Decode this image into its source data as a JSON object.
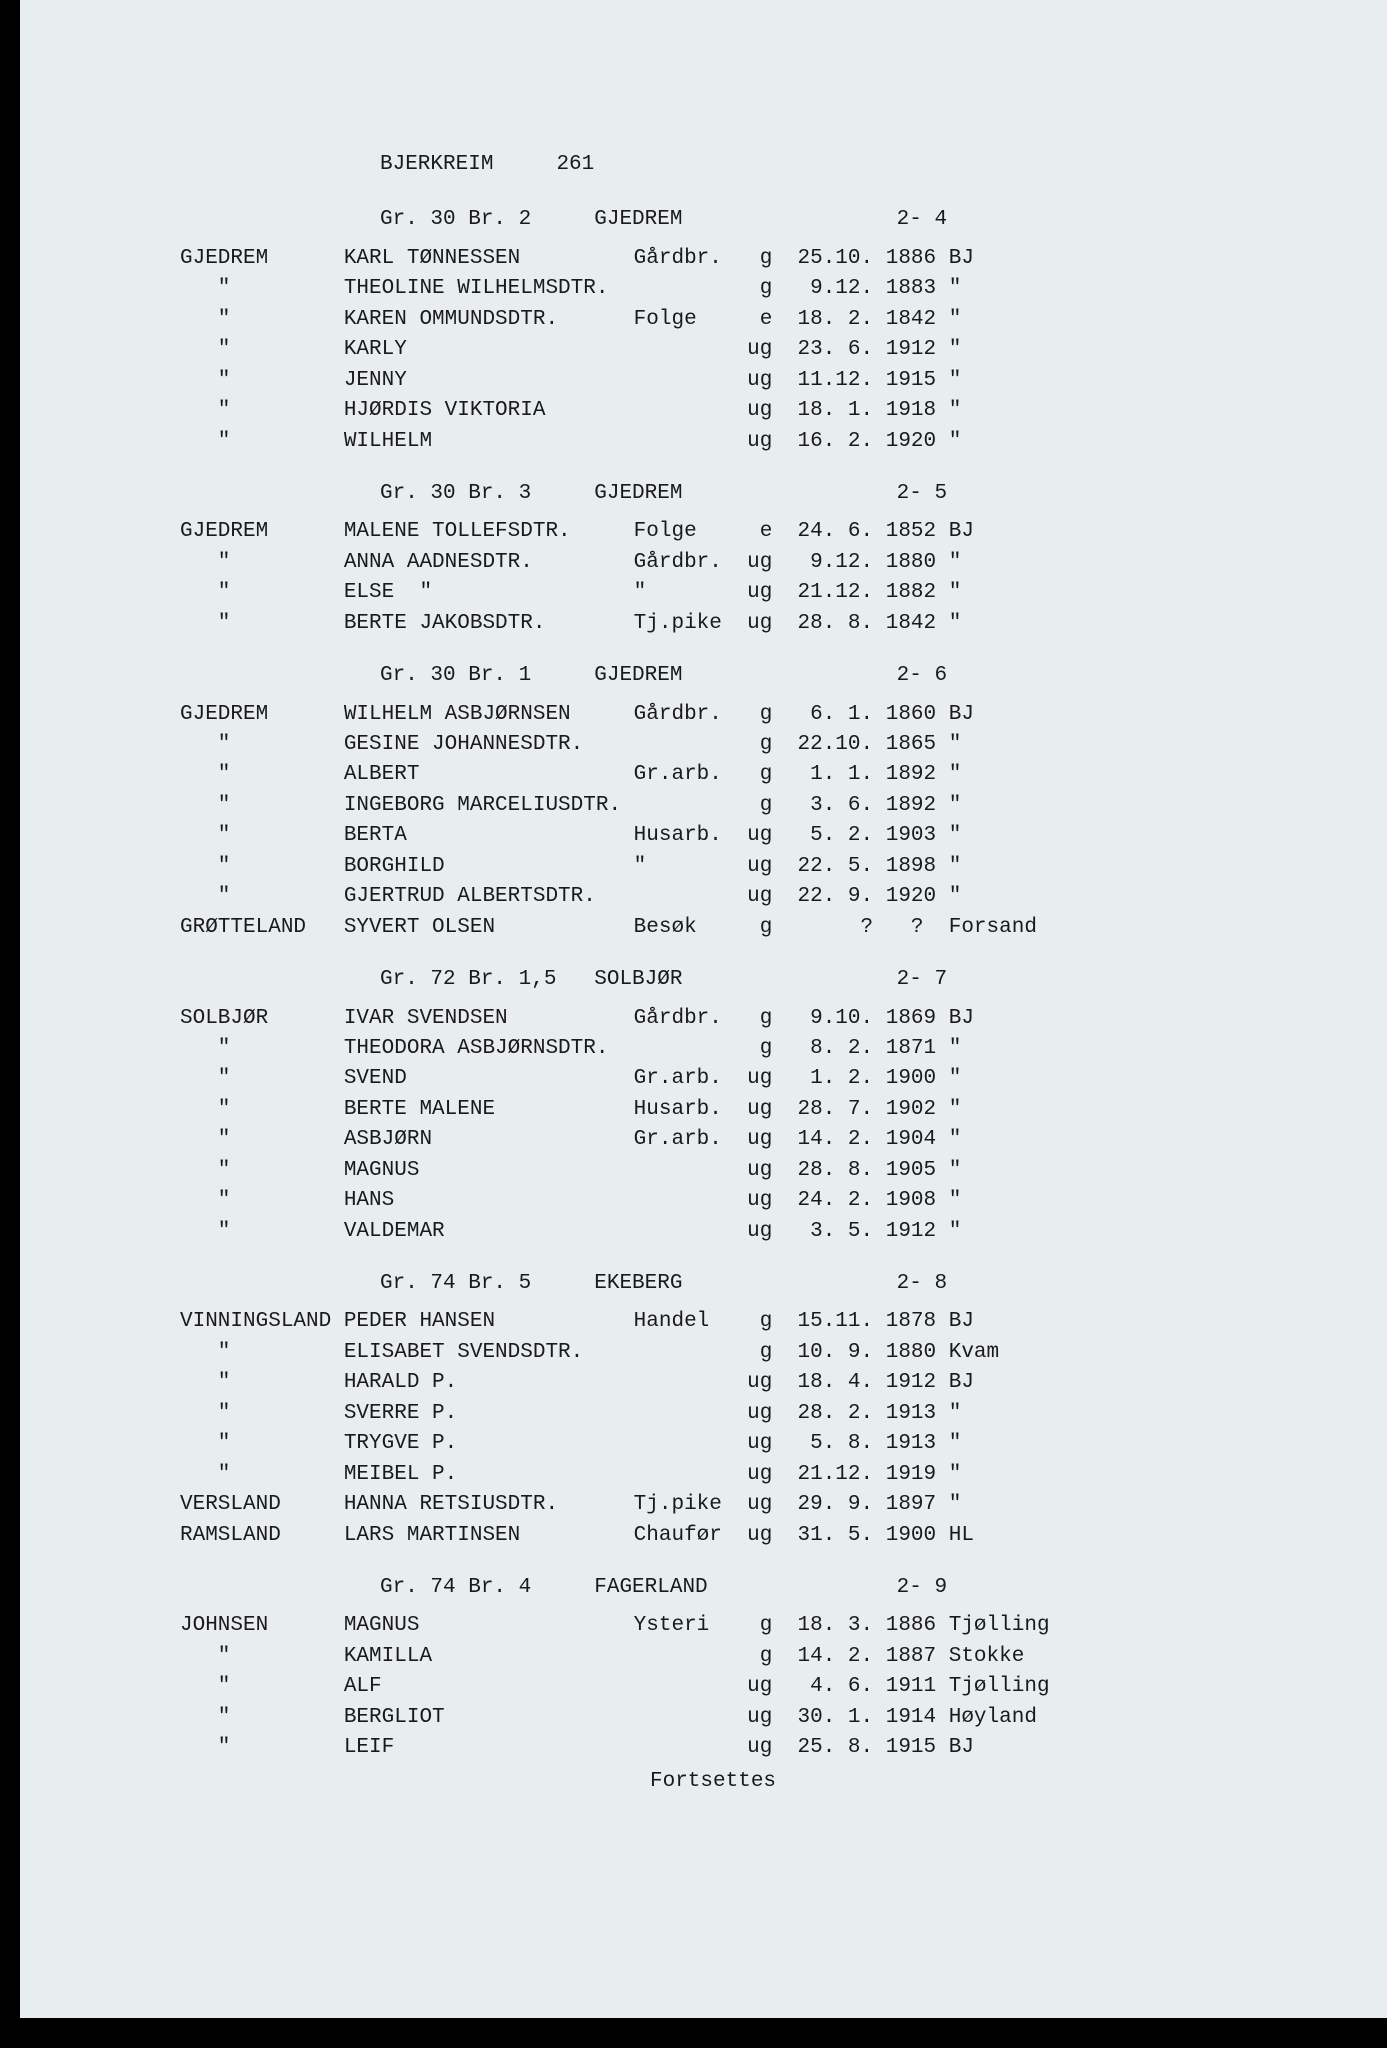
{
  "header": {
    "location": "BJERKREIM",
    "page_number": "261"
  },
  "sections": [
    {
      "header_left": "Gr. 30 Br. 2",
      "header_center": "GJEDREM",
      "header_right": "2- 4",
      "rows": [
        {
          "surname": "GJEDREM",
          "name": "KARL TØNNESSEN",
          "occupation": "Gårdbr.",
          "status": "g",
          "date": "25.10.",
          "year": "1886",
          "place": "BJ"
        },
        {
          "surname": "\"",
          "name": "THEOLINE WILHELMSDTR.",
          "occupation": "",
          "status": "g",
          "date": " 9.12.",
          "year": "1883",
          "place": "\""
        },
        {
          "surname": "\"",
          "name": "KAREN OMMUNDSDTR.",
          "occupation": "Folge",
          "status": "e",
          "date": "18. 2.",
          "year": "1842",
          "place": "\""
        },
        {
          "surname": "\"",
          "name": "KARLY",
          "occupation": "",
          "status": "ug",
          "date": "23. 6.",
          "year": "1912",
          "place": "\""
        },
        {
          "surname": "\"",
          "name": "JENNY",
          "occupation": "",
          "status": "ug",
          "date": "11.12.",
          "year": "1915",
          "place": "\""
        },
        {
          "surname": "\"",
          "name": "HJØRDIS VIKTORIA",
          "occupation": "",
          "status": "ug",
          "date": "18. 1.",
          "year": "1918",
          "place": "\""
        },
        {
          "surname": "\"",
          "name": "WILHELM",
          "occupation": "",
          "status": "ug",
          "date": "16. 2.",
          "year": "1920",
          "place": "\""
        }
      ]
    },
    {
      "header_left": "Gr. 30 Br. 3",
      "header_center": "GJEDREM",
      "header_right": "2- 5",
      "rows": [
        {
          "surname": "GJEDREM",
          "name": "MALENE TOLLEFSDTR.",
          "occupation": "Folge",
          "status": "e",
          "date": "24. 6.",
          "year": "1852",
          "place": "BJ"
        },
        {
          "surname": "\"",
          "name": "ANNA AADNESDTR.",
          "occupation": "Gårdbr.",
          "status": "ug",
          "date": " 9.12.",
          "year": "1880",
          "place": "\""
        },
        {
          "surname": "\"",
          "name": "ELSE  \"",
          "occupation": "\"",
          "status": "ug",
          "date": "21.12.",
          "year": "1882",
          "place": "\""
        },
        {
          "surname": "\"",
          "name": "BERTE JAKOBSDTR.",
          "occupation": "Tj.pike",
          "status": "ug",
          "date": "28. 8.",
          "year": "1842",
          "place": "\""
        }
      ]
    },
    {
      "header_left": "Gr. 30 Br. 1",
      "header_center": "GJEDREM",
      "header_right": "2- 6",
      "rows": [
        {
          "surname": "GJEDREM",
          "name": "WILHELM ASBJØRNSEN",
          "occupation": "Gårdbr.",
          "status": "g",
          "date": " 6. 1.",
          "year": "1860",
          "place": "BJ"
        },
        {
          "surname": "\"",
          "name": "GESINE JOHANNESDTR.",
          "occupation": "",
          "status": "g",
          "date": "22.10.",
          "year": "1865",
          "place": "\""
        },
        {
          "surname": "\"",
          "name": "ALBERT",
          "occupation": "Gr.arb.",
          "status": "g",
          "date": " 1. 1.",
          "year": "1892",
          "place": "\""
        },
        {
          "surname": "\"",
          "name": "INGEBORG MARCELIUSDTR.",
          "occupation": "",
          "status": "g",
          "date": " 3. 6.",
          "year": "1892",
          "place": "\""
        },
        {
          "surname": "\"",
          "name": "BERTA",
          "occupation": "Husarb.",
          "status": "ug",
          "date": " 5. 2.",
          "year": "1903",
          "place": "\""
        },
        {
          "surname": "\"",
          "name": "BORGHILD",
          "occupation": "\"",
          "status": "ug",
          "date": "22. 5.",
          "year": "1898",
          "place": "\""
        },
        {
          "surname": "\"",
          "name": "GJERTRUD ALBERTSDTR.",
          "occupation": "",
          "status": "ug",
          "date": "22. 9.",
          "year": "1920",
          "place": "\""
        },
        {
          "surname": "GRØTTELAND",
          "name": "SYVERT OLSEN",
          "occupation": "Besøk",
          "status": "g",
          "date": "  ?",
          "year": "  ?",
          "place": "Forsand"
        }
      ]
    },
    {
      "header_left": "Gr. 72 Br. 1,5",
      "header_center": "SOLBJØR",
      "header_right": "2- 7",
      "rows": [
        {
          "surname": "SOLBJØR",
          "name": "IVAR SVENDSEN",
          "occupation": "Gårdbr.",
          "status": "g",
          "date": " 9.10.",
          "year": "1869",
          "place": "BJ"
        },
        {
          "surname": "\"",
          "name": "THEODORA ASBJØRNSDTR.",
          "occupation": "",
          "status": "g",
          "date": " 8. 2.",
          "year": "1871",
          "place": "\""
        },
        {
          "surname": "\"",
          "name": "SVEND",
          "occupation": "Gr.arb.",
          "status": "ug",
          "date": " 1. 2.",
          "year": "1900",
          "place": "\""
        },
        {
          "surname": "\"",
          "name": "BERTE MALENE",
          "occupation": "Husarb.",
          "status": "ug",
          "date": "28. 7.",
          "year": "1902",
          "place": "\""
        },
        {
          "surname": "\"",
          "name": "ASBJØRN",
          "occupation": "Gr.arb.",
          "status": "ug",
          "date": "14. 2.",
          "year": "1904",
          "place": "\""
        },
        {
          "surname": "\"",
          "name": "MAGNUS",
          "occupation": "",
          "status": "ug",
          "date": "28. 8.",
          "year": "1905",
          "place": "\""
        },
        {
          "surname": "\"",
          "name": "HANS",
          "occupation": "",
          "status": "ug",
          "date": "24. 2.",
          "year": "1908",
          "place": "\""
        },
        {
          "surname": "\"",
          "name": "VALDEMAR",
          "occupation": "",
          "status": "ug",
          "date": " 3. 5.",
          "year": "1912",
          "place": "\""
        }
      ]
    },
    {
      "header_left": "Gr. 74 Br. 5",
      "header_center": "EKEBERG",
      "header_right": "2- 8",
      "rows": [
        {
          "surname": "VINNINGSLAND",
          "name": "PEDER HANSEN",
          "occupation": "Handel",
          "status": "g",
          "date": "15.11.",
          "year": "1878",
          "place": "BJ"
        },
        {
          "surname": "\"",
          "name": "ELISABET SVENDSDTR.",
          "occupation": "",
          "status": "g",
          "date": "10. 9.",
          "year": "1880",
          "place": "Kvam"
        },
        {
          "surname": "\"",
          "name": "HARALD P.",
          "occupation": "",
          "status": "ug",
          "date": "18. 4.",
          "year": "1912",
          "place": "BJ"
        },
        {
          "surname": "\"",
          "name": "SVERRE P.",
          "occupation": "",
          "status": "ug",
          "date": "28. 2.",
          "year": "1913",
          "place": "\""
        },
        {
          "surname": "\"",
          "name": "TRYGVE P.",
          "occupation": "",
          "status": "ug",
          "date": " 5. 8.",
          "year": "1913",
          "place": "\""
        },
        {
          "surname": "\"",
          "name": "MEIBEL P.",
          "occupation": "",
          "status": "ug",
          "date": "21.12.",
          "year": "1919",
          "place": "\""
        },
        {
          "surname": "VERSLAND",
          "name": "HANNA RETSIUSDTR.",
          "occupation": "Tj.pike",
          "status": "ug",
          "date": "29. 9.",
          "year": "1897",
          "place": "\""
        },
        {
          "surname": "RAMSLAND",
          "name": "LARS MARTINSEN",
          "occupation": "Chaufør",
          "status": "ug",
          "date": "31. 5.",
          "year": "1900",
          "place": "HL"
        }
      ]
    },
    {
      "header_left": "Gr. 74 Br. 4",
      "header_center": "FAGERLAND",
      "header_right": "2- 9",
      "rows": [
        {
          "surname": "JOHNSEN",
          "name": "MAGNUS",
          "occupation": "Ysteri",
          "status": "g",
          "date": "18. 3.",
          "year": "1886",
          "place": "Tjølling"
        },
        {
          "surname": "\"",
          "name": "KAMILLA",
          "occupation": "",
          "status": "g",
          "date": "14. 2.",
          "year": "1887",
          "place": "Stokke"
        },
        {
          "surname": "\"",
          "name": "ALF",
          "occupation": "",
          "status": "ug",
          "date": " 4. 6.",
          "year": "1911",
          "place": "Tjølling"
        },
        {
          "surname": "\"",
          "name": "BERGLIOT",
          "occupation": "",
          "status": "ug",
          "date": "30. 1.",
          "year": "1914",
          "place": "Høyland"
        },
        {
          "surname": "\"",
          "name": "LEIF",
          "occupation": "",
          "status": "ug",
          "date": "25. 8.",
          "year": "1915",
          "place": "BJ"
        }
      ]
    }
  ],
  "footer": "Fortsettes",
  "layout": {
    "col_surname": 13,
    "col_name": 23,
    "col_occupation": 9,
    "col_status": 3,
    "col_date": 7,
    "col_year": 5,
    "header_left_width": 17,
    "header_center_width": 24
  }
}
